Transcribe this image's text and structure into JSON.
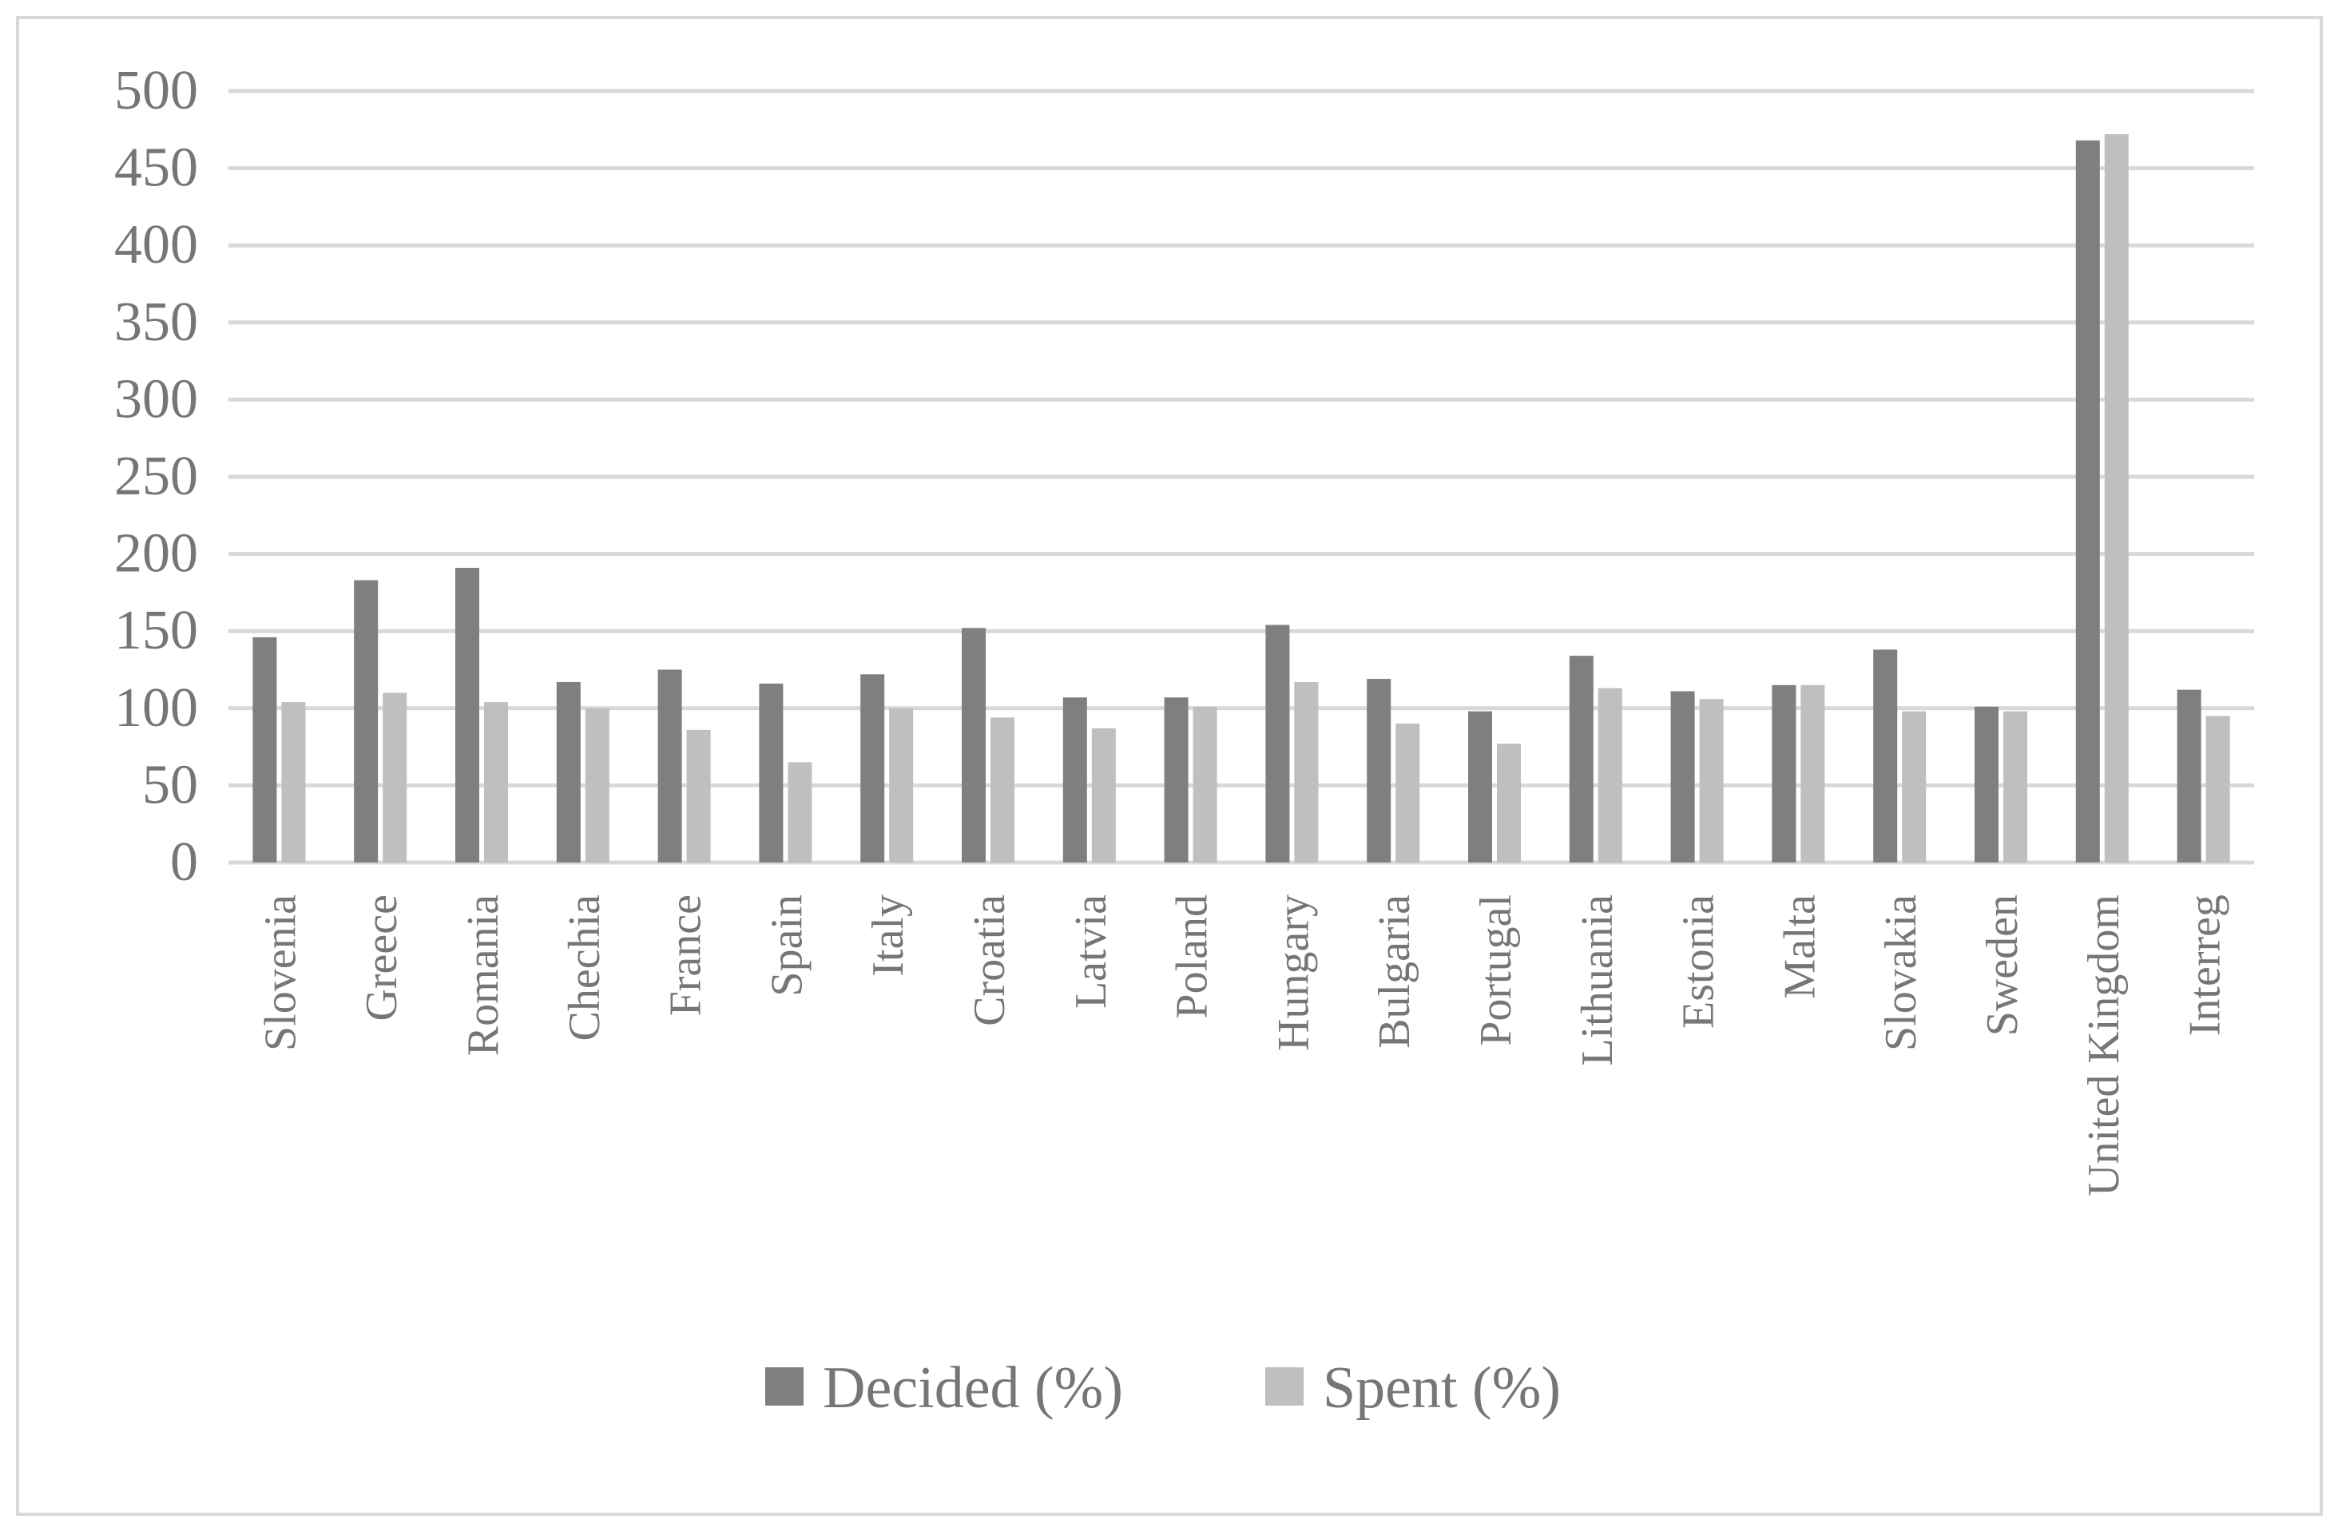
{
  "chart_data": {
    "type": "bar",
    "title": "",
    "xlabel": "",
    "ylabel": "",
    "ylim": [
      0,
      500
    ],
    "yticks": [
      0,
      50,
      100,
      150,
      200,
      250,
      300,
      350,
      400,
      450,
      500
    ],
    "grid": true,
    "legend_position": "bottom",
    "categories": [
      "Slovenia",
      "Greece",
      "Romania",
      "Chechia",
      "France",
      "Spain",
      "Italy",
      "Croatia",
      "Latvia",
      "Poland",
      "Hungary",
      "Bulgaria",
      "Portugal",
      "Lithuania",
      "Estonia",
      "Malta",
      "Slovakia",
      "Sweden",
      "United Kingdom",
      "Interreg"
    ],
    "series": [
      {
        "name": "Decided (%)",
        "color": "#7f7f7f",
        "values": [
          146,
          183,
          191,
          117,
          125,
          116,
          122,
          152,
          107,
          107,
          154,
          119,
          98,
          134,
          111,
          115,
          138,
          101,
          468,
          112
        ]
      },
      {
        "name": "Spent (%)",
        "color": "#bfbfbf",
        "values": [
          104,
          110,
          104,
          100,
          86,
          65,
          100,
          94,
          87,
          101,
          117,
          90,
          77,
          113,
          106,
          115,
          98,
          98,
          472,
          95
        ]
      }
    ]
  }
}
